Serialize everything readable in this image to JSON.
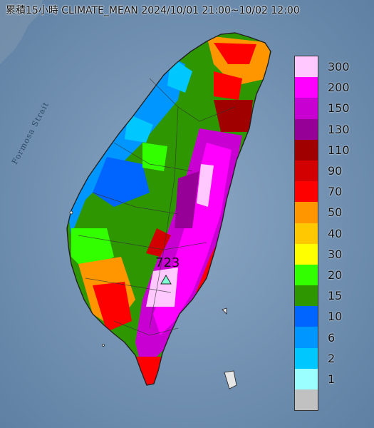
{
  "title": "累積15小時 CLIMATE_MEAN 2024/10/01 21:00~10/02 12:00",
  "sea_label": "Formosa Strait",
  "max_station": {
    "value": "723",
    "icon": "triangle-marker-icon",
    "color": "#7fffd4"
  },
  "legend": [
    {
      "label": "300",
      "color": "#ffc8ff"
    },
    {
      "label": "200",
      "color": "#ff00ff"
    },
    {
      "label": "150",
      "color": "#c800d2"
    },
    {
      "label": "130",
      "color": "#960096"
    },
    {
      "label": "110",
      "color": "#a00000"
    },
    {
      "label": "90",
      "color": "#d20000"
    },
    {
      "label": "70",
      "color": "#ff0000"
    },
    {
      "label": "50",
      "color": "#ff9600"
    },
    {
      "label": "40",
      "color": "#ffc800"
    },
    {
      "label": "30",
      "color": "#ffff00"
    },
    {
      "label": "20",
      "color": "#32ff00"
    },
    {
      "label": "15",
      "color": "#2d9600"
    },
    {
      "label": "10",
      "color": "#0064ff"
    },
    {
      "label": "6",
      "color": "#0096ff"
    },
    {
      "label": "2",
      "color": "#00c8ff"
    },
    {
      "label": "1",
      "color": "#9bffff"
    },
    {
      "label": "",
      "color": "#c1c1c1"
    }
  ],
  "colors": {
    "sea": "#6e8fb0",
    "land_outline": "#222222"
  }
}
